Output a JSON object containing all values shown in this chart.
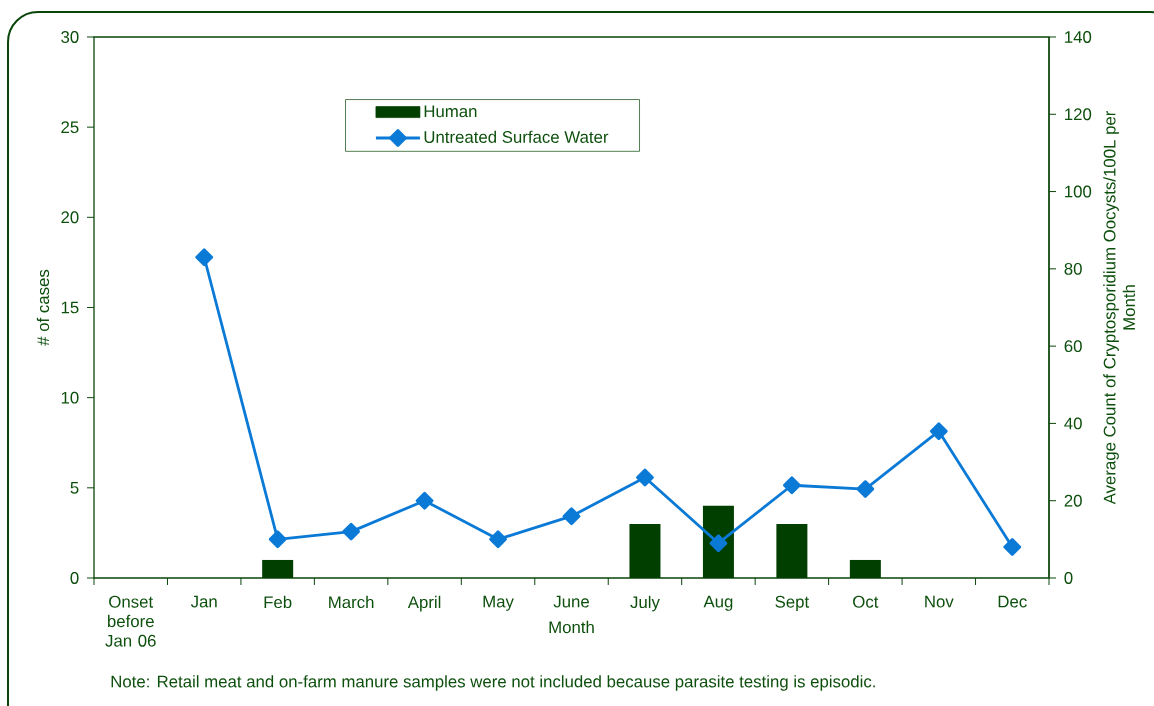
{
  "chart_data": {
    "type": "bar",
    "xlabel": "Month",
    "ylabel": "# of cases",
    "y2label": "Average Count of Cryptosporidium Oocysts/100L per Month",
    "categories": [
      "Onset before Jan 06",
      "Jan",
      "Feb",
      "March",
      "April",
      "May",
      "June",
      "July",
      "Aug",
      "Sept",
      "Oct",
      "Nov",
      "Dec"
    ],
    "series": [
      {
        "name": "Human",
        "color": "#003f00",
        "values": [
          null,
          null,
          1,
          null,
          null,
          null,
          null,
          3,
          4,
          3,
          1,
          null,
          null
        ]
      },
      {
        "name": "Untreated Surface Water",
        "type": "line",
        "axis": "y2",
        "color": "#0a7ad6",
        "values": [
          null,
          83,
          10,
          12,
          20,
          10,
          16,
          26,
          9,
          24,
          23,
          38,
          8
        ]
      }
    ],
    "ylim": [
      0,
      30
    ],
    "yticks": [
      0,
      5,
      10,
      15,
      20,
      25,
      30
    ],
    "y2lim": [
      0,
      140
    ],
    "y2ticks": [
      0,
      20,
      40,
      60,
      80,
      100,
      120,
      140
    ],
    "marker": "diamond",
    "line_style": "solid",
    "legend": "top",
    "annotations": [
      "Note: Retail meat and on-farm manure samples were not included because parasite testing is episodic."
    ]
  }
}
